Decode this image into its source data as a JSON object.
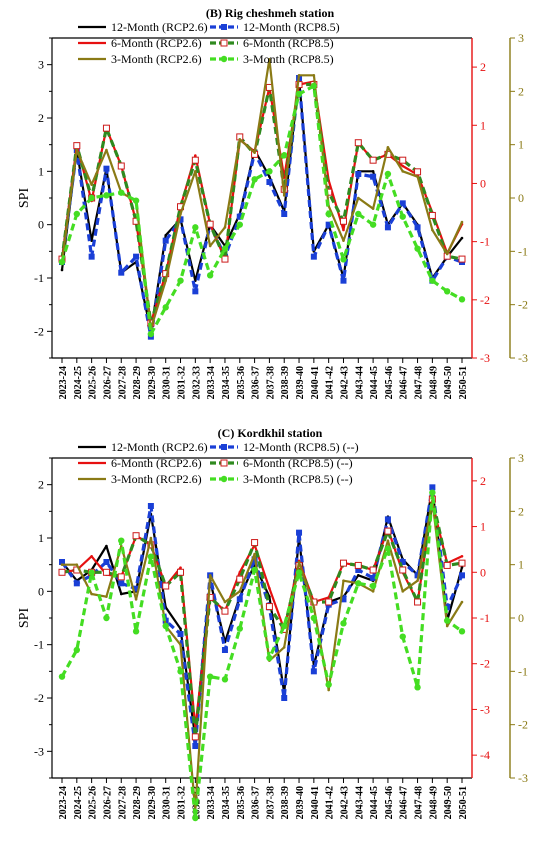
{
  "colors": {
    "m12_26": "#000000",
    "m12_85": "#1a3fd6",
    "m6_26": "#e61010",
    "m6_85": "#2f8a1f",
    "m6_85_marker": "#cc1a1a",
    "m3_26": "#8a7a15",
    "m3_85": "#44dd22",
    "axis_red": "#e61010",
    "axis_olive": "#8a7a15"
  },
  "chart_data": [
    {
      "type": "line",
      "title": "(B) Rig cheshmeh station",
      "ylabel": "SPI",
      "ylim": [
        -2.5,
        3.5
      ],
      "ylim_right1": [
        -3,
        2.5
      ],
      "ylim_right2": [
        -3,
        3
      ],
      "yticks": [
        "-2",
        "-1",
        "0",
        "1",
        "2",
        "3"
      ],
      "yticks_right1": [
        "-3",
        "-2",
        "-1",
        "0",
        "1",
        "2"
      ],
      "yticks_right2": [
        "-3",
        "-2",
        "-1",
        "0",
        "1",
        "2",
        "3"
      ],
      "categories": [
        "2023-24",
        "2024-25",
        "2025-26",
        "2026-27",
        "2027-28",
        "2028-29",
        "2029-30",
        "2030-31",
        "2031-32",
        "2032-33",
        "2033-34",
        "2034-35",
        "2035-36",
        "2036-37",
        "2037-38",
        "2038-39",
        "2039-40",
        "2040-41",
        "2041-42",
        "2042-43",
        "2043-44",
        "2044-45",
        "2045-46",
        "2046-47",
        "2047-48",
        "2048-49",
        "2049-50",
        "2050-51"
      ],
      "legend": [
        {
          "label": "12-Month (RCP2.6)",
          "key": "m12_26"
        },
        {
          "label": "12-Month (RCP8.5)",
          "key": "m12_85"
        },
        {
          "label": "6-Month (RCP2.6)",
          "key": "m6_26"
        },
        {
          "label": "6-Month (RCP8.5)",
          "key": "m6_85"
        },
        {
          "label": "3-Month (RCP2.6)",
          "key": "m3_26"
        },
        {
          "label": "3-Month (RCP8.5)",
          "key": "m3_85"
        }
      ],
      "series": [
        {
          "key": "m12_26",
          "axis": "left",
          "values": [
            -0.85,
            1.4,
            -0.3,
            1.05,
            -0.9,
            -0.7,
            -2.0,
            -0.2,
            0.1,
            -1.05,
            0.0,
            -0.4,
            0.2,
            1.4,
            0.9,
            0.25,
            2.75,
            -0.5,
            0.0,
            -1.0,
            1.0,
            1.0,
            0.0,
            0.4,
            0.0,
            -1.0,
            -0.6,
            -0.25
          ]
        },
        {
          "key": "m12_85",
          "axis": "left",
          "values": [
            -0.7,
            1.4,
            -0.6,
            1.05,
            -0.9,
            -0.6,
            -2.1,
            -0.3,
            0.1,
            -1.25,
            0.0,
            -0.6,
            0.15,
            1.35,
            0.8,
            0.2,
            2.75,
            -0.6,
            0.0,
            -1.05,
            0.95,
            0.9,
            -0.05,
            0.4,
            -0.05,
            -1.05,
            -0.6,
            -0.7
          ]
        },
        {
          "key": "m6_26",
          "axis": "right1",
          "values": [
            -1.3,
            0.65,
            -0.3,
            0.95,
            0.3,
            -0.65,
            -2.4,
            -1.55,
            -0.4,
            0.48,
            -0.7,
            -1.3,
            0.75,
            0.55,
            1.65,
            0.1,
            1.7,
            1.75,
            0.05,
            -0.8,
            0.7,
            0.4,
            0.5,
            0.3,
            0.15,
            -0.5,
            -1.2,
            -0.7
          ]
        },
        {
          "key": "m6_85",
          "axis": "right1",
          "values": [
            -1.3,
            0.65,
            -0.25,
            0.95,
            0.3,
            -0.65,
            -2.4,
            -1.55,
            -0.4,
            0.4,
            -0.7,
            -1.3,
            0.8,
            0.5,
            1.65,
            -0.1,
            1.7,
            1.7,
            -0.15,
            -0.65,
            0.7,
            0.4,
            0.5,
            0.4,
            0.2,
            -0.55,
            -1.25,
            -1.3
          ]
        },
        {
          "key": "m3_26",
          "axis": "right2",
          "values": [
            -1.2,
            0.9,
            0.25,
            0.9,
            0.1,
            -0.05,
            -2.45,
            -1.55,
            -0.3,
            0.5,
            -0.9,
            -0.55,
            1.1,
            0.85,
            2.6,
            0.05,
            2.3,
            2.3,
            -0.15,
            -0.8,
            0.0,
            -0.2,
            0.95,
            0.5,
            0.4,
            -0.6,
            -1.05,
            -0.45
          ]
        },
        {
          "key": "m3_85",
          "axis": "right2",
          "values": [
            -1.2,
            -0.3,
            0.0,
            0.05,
            0.1,
            -0.05,
            -2.55,
            -2.05,
            -1.55,
            -0.55,
            -1.45,
            -0.95,
            -0.5,
            0.35,
            0.5,
            0.8,
            1.95,
            2.1,
            -0.3,
            -1.15,
            -0.3,
            -0.5,
            0.45,
            -0.35,
            -0.95,
            -1.55,
            -1.75,
            -1.9
          ]
        }
      ]
    },
    {
      "type": "line",
      "title": "(C) Kordkhil station",
      "ylabel": "SPI",
      "ylim": [
        -3.5,
        2.5
      ],
      "ylim_right1": [
        -4.5,
        2.5
      ],
      "ylim_right2": [
        -3,
        3
      ],
      "yticks": [
        "-3",
        "-2",
        "-1",
        "0",
        "1",
        "2"
      ],
      "yticks_right1": [
        "-4",
        "-3",
        "-2",
        "-1",
        "0",
        "1",
        "2"
      ],
      "yticks_right2": [
        "-3",
        "-2",
        "-1",
        "0",
        "1",
        "2",
        "3"
      ],
      "categories": [
        "2023-24",
        "2024-25",
        "2025-26",
        "2026-27",
        "2027-28",
        "2028-29",
        "2029-30",
        "2030-31",
        "2031-32",
        "2032-33",
        "2033-34",
        "2034-35",
        "2035-36",
        "2036-37",
        "2037-38",
        "2038-39",
        "2039-40",
        "2040-41",
        "2041-42",
        "2042-43",
        "2043-44",
        "2044-45",
        "2045-46",
        "2046-47",
        "2047-48",
        "2048-49",
        "2049-50",
        "2050-51"
      ],
      "legend": [
        {
          "label": "12-Month (RCP2.6)",
          "key": "m12_26"
        },
        {
          "label": "12-Month (RCP8.5) (--)",
          "key": "m12_85"
        },
        {
          "label": "6-Month (RCP2.6)",
          "key": "m6_26"
        },
        {
          "label": "6-Month (RCP8.5) (--)",
          "key": "m6_85"
        },
        {
          "label": "3-Month (RCP2.6)",
          "key": "m3_26"
        },
        {
          "label": "3-Month (RCP8.5) (--)",
          "key": "m3_85"
        }
      ],
      "series": [
        {
          "key": "m12_26",
          "axis": "left",
          "values": [
            0.55,
            0.2,
            0.4,
            0.85,
            -0.05,
            0.0,
            1.45,
            -0.3,
            -0.7,
            -2.75,
            0.2,
            -0.95,
            -0.1,
            0.5,
            -0.1,
            -1.9,
            1.0,
            -1.4,
            -0.2,
            -0.1,
            0.3,
            0.2,
            1.4,
            0.6,
            0.3,
            1.95,
            -0.55,
            0.45
          ]
        },
        {
          "key": "m12_85",
          "axis": "left",
          "values": [
            0.55,
            0.15,
            0.3,
            0.55,
            0.15,
            0.05,
            1.6,
            -0.55,
            -0.8,
            -2.9,
            0.3,
            -1.1,
            -0.15,
            0.6,
            -0.3,
            -2.0,
            1.1,
            -1.5,
            -0.25,
            -0.15,
            0.4,
            0.25,
            1.35,
            0.55,
            0.3,
            1.95,
            -0.3,
            0.3
          ]
        },
        {
          "key": "m6_26",
          "axis": "right1",
          "values": [
            0.0,
            0.05,
            0.35,
            -0.05,
            -0.1,
            0.8,
            0.6,
            -0.3,
            0.1,
            -3.4,
            -0.55,
            -0.85,
            0.0,
            0.6,
            -0.35,
            -1.25,
            0.25,
            -0.65,
            -0.55,
            0.2,
            0.15,
            0.05,
            0.95,
            -0.0,
            -0.65,
            1.5,
            0.2,
            0.35
          ]
        },
        {
          "key": "m6_85",
          "axis": "right1",
          "values": [
            0.0,
            0.05,
            0.0,
            0.0,
            -0.1,
            0.8,
            0.6,
            -0.3,
            0.0,
            -3.6,
            -0.55,
            -0.85,
            -0.15,
            0.65,
            -0.75,
            -1.25,
            0.15,
            -0.65,
            -0.65,
            0.2,
            0.15,
            0.05,
            0.9,
            0.05,
            -0.65,
            1.6,
            0.15,
            0.2
          ]
        },
        {
          "key": "m3_26",
          "axis": "right2",
          "values": [
            1.0,
            1.0,
            0.45,
            0.4,
            1.35,
            0.35,
            1.5,
            -0.15,
            -0.5,
            -3.6,
            0.8,
            0.3,
            0.5,
            1.2,
            -0.8,
            -0.55,
            1.05,
            0.2,
            -1.35,
            0.7,
            0.65,
            0.5,
            1.45,
            0.5,
            0.7,
            2.2,
            -0.15,
            0.3
          ]
        },
        {
          "key": "m3_85",
          "axis": "right2",
          "values": [
            -1.1,
            -0.6,
            0.85,
            0.0,
            1.45,
            -0.25,
            1.15,
            -0.15,
            -1.0,
            -3.75,
            -1.1,
            -1.15,
            -0.2,
            0.9,
            -0.75,
            -0.15,
            0.85,
            0.0,
            -1.25,
            -0.1,
            0.65,
            0.6,
            1.3,
            -0.35,
            -1.3,
            2.35,
            -0.05,
            -0.25
          ]
        }
      ]
    }
  ]
}
